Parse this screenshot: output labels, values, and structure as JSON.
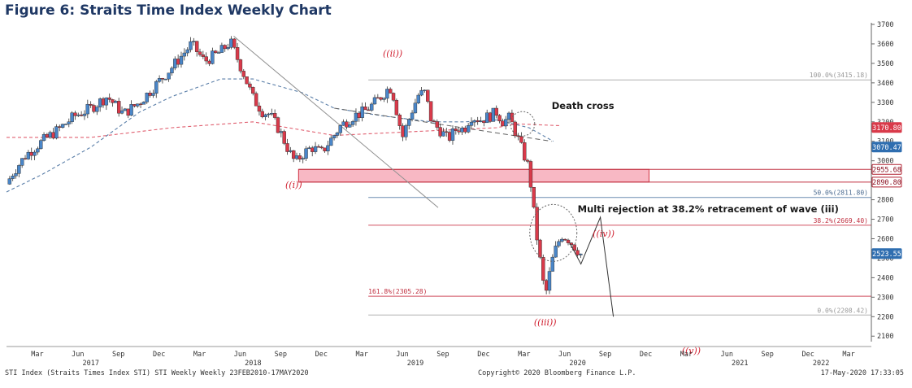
{
  "title": "Figure 6: Straits Time Index Weekly Chart",
  "footer": {
    "left": "STI Index (Straits Times Index STI) STI Weekly  Weekly 23FEB2010-17MAY2020",
    "middle": "Copyright© 2020 Bloomberg Finance L.P.",
    "right": "17-May-2020 17:33:05"
  },
  "colors": {
    "up": "#4a86c8",
    "down": "#d93a4a",
    "ma_slow": "#e06070",
    "ma_fast": "#5a7ea8",
    "zone_fill": "#f8b8c4",
    "wave_label": "#d02030"
  },
  "chart_data": {
    "type": "candlestick",
    "title": "Figure 6: Straits Time Index Weekly Chart",
    "ylim": [
      2050,
      3730
    ],
    "y_ticks": [
      "3700",
      "3600",
      "3500",
      "3400",
      "3300",
      "3200",
      "3100",
      "3000",
      "2900",
      "2800",
      "2700",
      "2600",
      "2500",
      "2400",
      "2300",
      "2200",
      "2100"
    ],
    "x_ticks": [
      {
        "label": "Mar",
        "t": 2017.17
      },
      {
        "label": "Jun",
        "t": 2017.42
      },
      {
        "label": "Sep",
        "t": 2017.67
      },
      {
        "label": "Dec",
        "t": 2017.92
      },
      {
        "label": "Mar",
        "t": 2018.17
      },
      {
        "label": "Jun",
        "t": 2018.42
      },
      {
        "label": "Sep",
        "t": 2018.67
      },
      {
        "label": "Dec",
        "t": 2018.92
      },
      {
        "label": "Mar",
        "t": 2019.17
      },
      {
        "label": "Jun",
        "t": 2019.42
      },
      {
        "label": "Sep",
        "t": 2019.67
      },
      {
        "label": "Dec",
        "t": 2019.92
      },
      {
        "label": "Mar",
        "t": 2020.17
      },
      {
        "label": "Jun",
        "t": 2020.42
      },
      {
        "label": "Sep",
        "t": 2020.67
      },
      {
        "label": "Dec",
        "t": 2020.92
      },
      {
        "label": "Mar",
        "t": 2021.17
      },
      {
        "label": "Jun",
        "t": 2021.42
      },
      {
        "label": "Sep",
        "t": 2021.67
      },
      {
        "label": "Dec",
        "t": 2021.92
      },
      {
        "label": "Mar",
        "t": 2022.17
      }
    ],
    "year_labels": [
      {
        "label": "2017",
        "t": 2017.5
      },
      {
        "label": "2018",
        "t": 2018.5
      },
      {
        "label": "2019",
        "t": 2019.5
      },
      {
        "label": "2020",
        "t": 2020.5
      },
      {
        "label": "2021",
        "t": 2021.5
      },
      {
        "label": "2022",
        "t": 2022.0
      }
    ],
    "price_path": [
      [
        2016.98,
        2880
      ],
      [
        2017.02,
        2940
      ],
      [
        2017.1,
        3030
      ],
      [
        2017.2,
        3100
      ],
      [
        2017.3,
        3160
      ],
      [
        2017.4,
        3230
      ],
      [
        2017.5,
        3270
      ],
      [
        2017.6,
        3330
      ],
      [
        2017.7,
        3240
      ],
      [
        2017.8,
        3300
      ],
      [
        2017.9,
        3390
      ],
      [
        2018.0,
        3480
      ],
      [
        2018.08,
        3560
      ],
      [
        2018.12,
        3600
      ],
      [
        2018.2,
        3510
      ],
      [
        2018.3,
        3560
      ],
      [
        2018.36,
        3610
      ],
      [
        2018.44,
        3450
      ],
      [
        2018.5,
        3320
      ],
      [
        2018.56,
        3250
      ],
      [
        2018.6,
        3240
      ],
      [
        2018.66,
        3160
      ],
      [
        2018.72,
        3050
      ],
      [
        2018.76,
        2990
      ],
      [
        2018.8,
        3030
      ],
      [
        2018.86,
        3070
      ],
      [
        2018.92,
        3040
      ],
      [
        2018.98,
        3110
      ],
      [
        2019.04,
        3180
      ],
      [
        2019.12,
        3230
      ],
      [
        2019.18,
        3250
      ],
      [
        2019.24,
        3290
      ],
      [
        2019.3,
        3340
      ],
      [
        2019.34,
        3380
      ],
      [
        2019.36,
        3350
      ],
      [
        2019.42,
        3120
      ],
      [
        2019.48,
        3260
      ],
      [
        2019.52,
        3340
      ],
      [
        2019.56,
        3350
      ],
      [
        2019.6,
        3200
      ],
      [
        2019.66,
        3150
      ],
      [
        2019.7,
        3110
      ],
      [
        2019.76,
        3170
      ],
      [
        2019.8,
        3160
      ],
      [
        2019.84,
        3230
      ],
      [
        2019.9,
        3210
      ],
      [
        2019.96,
        3230
      ],
      [
        2020.0,
        3250
      ],
      [
        2020.04,
        3200
      ],
      [
        2020.08,
        3220
      ],
      [
        2020.12,
        3140
      ],
      [
        2020.16,
        3050
      ],
      [
        2020.2,
        2960
      ],
      [
        2020.24,
        2660
      ],
      [
        2020.28,
        2420
      ],
      [
        2020.3,
        2300
      ],
      [
        2020.32,
        2390
      ],
      [
        2020.34,
        2480
      ],
      [
        2020.37,
        2560
      ],
      [
        2020.4,
        2620
      ],
      [
        2020.44,
        2600
      ],
      [
        2020.48,
        2560
      ],
      [
        2020.52,
        2520
      ]
    ],
    "moving_averages": [
      {
        "name": "slow",
        "points": [
          [
            2016.98,
            3120
          ],
          [
            2017.5,
            3120
          ],
          [
            2018.0,
            3170
          ],
          [
            2018.5,
            3200
          ],
          [
            2019.0,
            3130
          ],
          [
            2019.5,
            3150
          ],
          [
            2020.0,
            3170
          ],
          [
            2020.12,
            3190
          ],
          [
            2020.4,
            3180
          ]
        ]
      },
      {
        "name": "fast",
        "points": [
          [
            2016.98,
            2840
          ],
          [
            2017.2,
            2930
          ],
          [
            2017.5,
            3070
          ],
          [
            2017.8,
            3250
          ],
          [
            2018.0,
            3330
          ],
          [
            2018.3,
            3420
          ],
          [
            2018.5,
            3420
          ],
          [
            2018.8,
            3350
          ],
          [
            2019.0,
            3270
          ],
          [
            2019.3,
            3230
          ],
          [
            2019.6,
            3200
          ],
          [
            2019.8,
            3200
          ],
          [
            2020.0,
            3210
          ],
          [
            2020.2,
            3170
          ],
          [
            2020.35,
            3100
          ]
        ]
      }
    ],
    "fibonacci": [
      {
        "label": "100.0%(3415.18)",
        "value": 3415.18
      },
      {
        "label": "50.0%(2811.80)",
        "value": 2811.8
      },
      {
        "label": "38.2%(2669.40)",
        "value": 2669.4
      },
      {
        "label": "161.8%(2305.28)",
        "value": 2305.28
      },
      {
        "label": "0.0%(2208.42)",
        "value": 2208.42
      }
    ],
    "price_tags": [
      {
        "label": "3170.80",
        "value": 3170.8,
        "style": "red"
      },
      {
        "label": "3070.47",
        "value": 3070.47,
        "style": "blue"
      },
      {
        "label": "2955.68",
        "value": 2955.68,
        "style": "outline"
      },
      {
        "label": "2890.80",
        "value": 2890.8,
        "style": "outline"
      },
      {
        "label": "2523.55",
        "value": 2523.55,
        "style": "blue"
      }
    ],
    "support_zone": {
      "from": 2890.8,
      "to": 2955.68,
      "t_start": 2018.78,
      "t_end": 2020.94
    },
    "wave_labels": [
      {
        "label": "((i))",
        "t": 2018.75,
        "y": 2860
      },
      {
        "label": "((ii))",
        "t": 2019.36,
        "y": 3535
      },
      {
        "label": "((iii))",
        "t": 2020.3,
        "y": 2155
      },
      {
        "label": "((iv))",
        "t": 2020.66,
        "y": 2610
      },
      {
        "label": "((v))",
        "t": 2021.2,
        "y": 2010
      }
    ],
    "annotations": [
      {
        "label": "Death cross",
        "t": 2020.34,
        "y": 3265
      },
      {
        "label": "Multi rejection at 38.2% retracement of wave (iii)",
        "t": 2020.5,
        "y": 2735
      }
    ],
    "projection_path": [
      [
        2020.45,
        2580
      ],
      [
        2020.52,
        2470
      ],
      [
        2020.64,
        2710
      ],
      [
        2020.72,
        2200
      ]
    ],
    "trendlines": [
      [
        [
          2018.38,
          3640
        ],
        [
          2019.64,
          2760
        ]
      ],
      [
        [
          2019.0,
          3270
        ],
        [
          2020.34,
          3100
        ]
      ]
    ]
  }
}
